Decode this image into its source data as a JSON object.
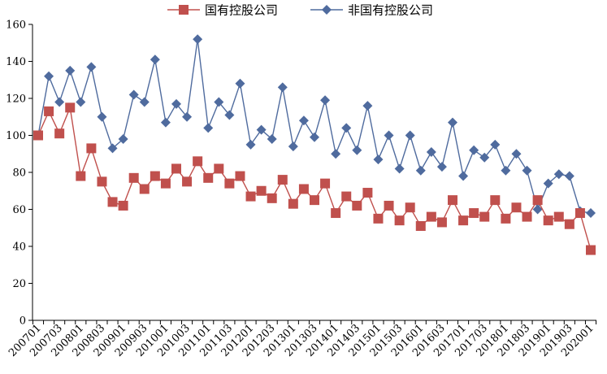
{
  "chart_data": {
    "type": "line",
    "legend": {
      "placement": "top-center"
    },
    "ylim": [
      0,
      160
    ],
    "yticks": [
      0,
      20,
      40,
      60,
      80,
      100,
      120,
      140,
      160
    ],
    "grid": false,
    "x": [
      "200701",
      "200702",
      "200703",
      "200704",
      "200801",
      "200802",
      "200803",
      "200804",
      "200901",
      "200902",
      "200903",
      "200904",
      "201001",
      "201002",
      "201003",
      "201004",
      "201101",
      "201102",
      "201103",
      "201104",
      "201201",
      "201202",
      "201203",
      "201204",
      "201301",
      "201302",
      "201303",
      "201304",
      "201401",
      "201402",
      "201403",
      "201404",
      "201501",
      "201502",
      "201503",
      "201504",
      "201601",
      "201602",
      "201603",
      "201604",
      "201701",
      "201702",
      "201703",
      "201704",
      "201801",
      "201802",
      "201803",
      "201804",
      "201901",
      "201902",
      "201903",
      "201904",
      "202001"
    ],
    "xtick_labels": [
      "200701",
      "200703",
      "200801",
      "200803",
      "200901",
      "200903",
      "201001",
      "201003",
      "201101",
      "201103",
      "201201",
      "201203",
      "201301",
      "201303",
      "201401",
      "201403",
      "201501",
      "201503",
      "201601",
      "201603",
      "201701",
      "201703",
      "201801",
      "201803",
      "201901",
      "201903",
      "202001"
    ],
    "series": [
      {
        "name": "国有控股公司",
        "color": "#C0504D",
        "marker": "square",
        "values": [
          100,
          113,
          101,
          115,
          78,
          93,
          75,
          64,
          62,
          77,
          71,
          78,
          74,
          82,
          75,
          86,
          77,
          82,
          74,
          78,
          67,
          70,
          66,
          76,
          63,
          71,
          65,
          74,
          58,
          67,
          62,
          69,
          55,
          62,
          54,
          61,
          51,
          56,
          53,
          65,
          54,
          58,
          56,
          65,
          55,
          61,
          56,
          65,
          54,
          56,
          52,
          58,
          38
        ]
      },
      {
        "name": "非国有控股公司",
        "color": "#4F6B9E",
        "marker": "diamond",
        "values": [
          100,
          132,
          118,
          135,
          118,
          137,
          110,
          93,
          98,
          122,
          118,
          141,
          107,
          117,
          110,
          152,
          104,
          118,
          111,
          128,
          95,
          103,
          98,
          126,
          94,
          108,
          99,
          119,
          90,
          104,
          92,
          116,
          87,
          100,
          82,
          100,
          81,
          91,
          83,
          107,
          78,
          92,
          88,
          95,
          81,
          90,
          81,
          60,
          74,
          79,
          78,
          59,
          58
        ]
      }
    ]
  }
}
